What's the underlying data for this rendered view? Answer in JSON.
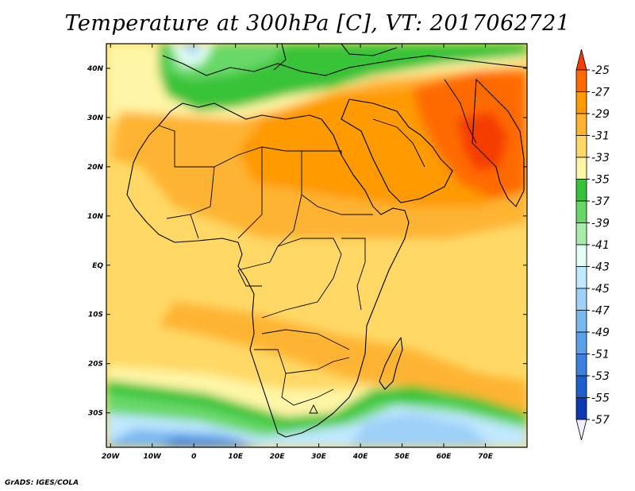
{
  "title": "Temperature at 300hPa [C], VT: 2017062721",
  "credit": "GrADS: IGES/COLA",
  "map": {
    "lon_range": [
      -21,
      80
    ],
    "lat_range": [
      -37,
      45
    ],
    "lon_ticks": [
      {
        "value": -20,
        "label": "20W"
      },
      {
        "value": -10,
        "label": "10W"
      },
      {
        "value": 0,
        "label": "0"
      },
      {
        "value": 10,
        "label": "10E"
      },
      {
        "value": 20,
        "label": "20E"
      },
      {
        "value": 30,
        "label": "30E"
      },
      {
        "value": 40,
        "label": "40E"
      },
      {
        "value": 50,
        "label": "50E"
      },
      {
        "value": 60,
        "label": "60E"
      },
      {
        "value": 70,
        "label": "70E"
      }
    ],
    "lat_ticks": [
      {
        "value": 40,
        "label": "40N"
      },
      {
        "value": 30,
        "label": "30N"
      },
      {
        "value": 20,
        "label": "20N"
      },
      {
        "value": 10,
        "label": "10N"
      },
      {
        "value": 0,
        "label": "EQ"
      },
      {
        "value": -10,
        "label": "10S"
      },
      {
        "value": -20,
        "label": "20S"
      },
      {
        "value": -30,
        "label": "30S"
      }
    ]
  },
  "colorbar": {
    "levels": [
      "-25",
      "-27",
      "-29",
      "-31",
      "-33",
      "-35",
      "-37",
      "-39",
      "-41",
      "-43",
      "-45",
      "-47",
      "-49",
      "-51",
      "-53",
      "-55",
      "-57"
    ],
    "colors": [
      "#f53d00",
      "#ff6a00",
      "#ff9a00",
      "#ffb330",
      "#ffd866",
      "#fff5a6",
      "#37c337",
      "#67d867",
      "#a8ecaa",
      "#e4fff4",
      "#c0e8ff",
      "#9ed0f8",
      "#7ab8f0",
      "#5aa0ea",
      "#3c80e0",
      "#1e5fd0",
      "#0c3ab4",
      "#001a8c"
    ]
  }
}
